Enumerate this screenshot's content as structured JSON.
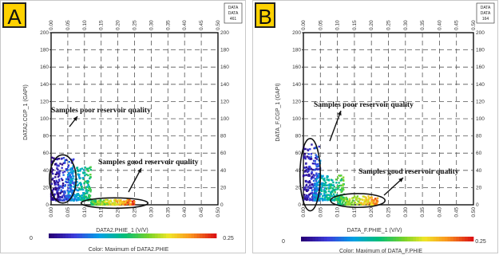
{
  "panels": [
    {
      "letter": "A",
      "stamp_lines": [
        "DATA",
        "DATA",
        "461"
      ],
      "xlabel": "DATA2.PHIE_1 (V/V)",
      "ylabel": "DATA2.CGP_1 (GAPI)",
      "colorbar_label": "Color: Maximum of DATA2.PHIE",
      "colorbar_min": "0",
      "colorbar_max": "0.25",
      "annotation_poor": "Samples poor reservoir quality",
      "annotation_good": "Samples good reservoir quality"
    },
    {
      "letter": "B",
      "stamp_lines": [
        "DATA",
        "DATA",
        "164"
      ],
      "xlabel": "DATA_F.PHIE_1 (V/V)",
      "ylabel": "DATA_F.CGP_1 (GAPI)",
      "colorbar_label": "Color: Maximum of DATA_F.PHIE",
      "colorbar_min": "0",
      "colorbar_max": "0.25",
      "annotation_poor": "Samples poor reservoir quality",
      "annotation_good": "Samples good reservoir quality"
    }
  ],
  "chart_data": [
    {
      "type": "scatter",
      "panel": "A",
      "xlabel": "DATA2.PHIE_1 (V/V)",
      "ylabel": "DATA2.CGP_1 (GAPI)",
      "xlim": [
        0,
        0.5
      ],
      "ylim": [
        0,
        200
      ],
      "x_ticks": [
        "0.00",
        "0.05",
        "0.10",
        "0.15",
        "0.20",
        "0.25",
        "0.30",
        "0.35",
        "0.40",
        "0.45",
        "0.50"
      ],
      "y_ticks": [
        "0",
        "20",
        "40",
        "60",
        "80",
        "100",
        "120",
        "140",
        "160",
        "180",
        "200"
      ],
      "grid": true,
      "colormap": "rainbow",
      "color_range": [
        0,
        0.25
      ],
      "clusters": [
        {
          "x_range": [
            0.0,
            0.07
          ],
          "y_range": [
            5,
            55
          ],
          "color_value": 0.03
        },
        {
          "x_range": [
            0.05,
            0.12
          ],
          "y_range": [
            5,
            45
          ],
          "color_value": 0.09
        },
        {
          "x_range": [
            0.12,
            0.25
          ],
          "y_range": [
            0,
            6
          ],
          "color_value": 0.18
        }
      ],
      "ellipses": [
        {
          "label": "Samples poor reservoir quality",
          "center": [
            0.035,
            30
          ],
          "radii": [
            0.04,
            28
          ]
        },
        {
          "label": "Samples good reservoir quality",
          "center": [
            0.19,
            2
          ],
          "radii": [
            0.1,
            6
          ]
        }
      ]
    },
    {
      "type": "scatter",
      "panel": "B",
      "xlabel": "DATA_F.PHIE_1 (V/V)",
      "ylabel": "DATA_F.CGP_1 (GAPI)",
      "xlim": [
        0,
        0.5
      ],
      "ylim": [
        0,
        200
      ],
      "x_ticks": [
        "0.00",
        "0.05",
        "0.10",
        "0.15",
        "0.20",
        "0.25",
        "0.30",
        "0.35",
        "0.40",
        "0.45",
        "0.50"
      ],
      "y_ticks": [
        "0",
        "20",
        "40",
        "60",
        "80",
        "100",
        "120",
        "140",
        "160",
        "180",
        "200"
      ],
      "grid": true,
      "colormap": "rainbow",
      "color_range": [
        0,
        0.25
      ],
      "clusters": [
        {
          "x_range": [
            0.0,
            0.05
          ],
          "y_range": [
            5,
            70
          ],
          "color_value": 0.03
        },
        {
          "x_range": [
            0.03,
            0.12
          ],
          "y_range": [
            5,
            35
          ],
          "color_value": 0.1
        },
        {
          "x_range": [
            0.1,
            0.22
          ],
          "y_range": [
            0,
            10
          ],
          "color_value": 0.17
        }
      ],
      "ellipses": [
        {
          "label": "Samples poor reservoir quality",
          "center": [
            0.02,
            35
          ],
          "radii": [
            0.03,
            42
          ]
        },
        {
          "label": "Samples good reservoir quality",
          "center": [
            0.16,
            5
          ],
          "radii": [
            0.08,
            8
          ]
        }
      ]
    }
  ]
}
